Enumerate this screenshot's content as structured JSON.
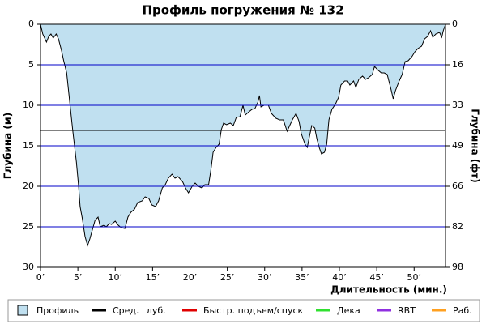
{
  "chart_data": {
    "type": "area",
    "title": "Профиль погружения № 132",
    "x_label": "Длительность (мин.)",
    "y_label": "Глубина (м)",
    "y2_label": "Глубина (фт)",
    "inverted": true,
    "xlim": [
      0,
      54.2
    ],
    "xticks": [
      {
        "value": 0,
        "label": "0’"
      },
      {
        "value": 5,
        "label": "5’"
      },
      {
        "value": 10,
        "label": "10’"
      },
      {
        "value": 15,
        "label": "15’"
      },
      {
        "value": 20,
        "label": "20’"
      },
      {
        "value": 25,
        "label": "25’"
      },
      {
        "value": 30,
        "label": "30’"
      },
      {
        "value": 35,
        "label": "35’"
      },
      {
        "value": 40,
        "label": "40’"
      },
      {
        "value": 45,
        "label": "45’"
      },
      {
        "value": 50,
        "label": "50’"
      }
    ],
    "ylim": [
      0,
      30
    ],
    "yticks": [
      0,
      5,
      10,
      15,
      20,
      25,
      30
    ],
    "y2lim": [
      0,
      98.4
    ],
    "y2ticks": [
      0,
      {
        "value": 16.4,
        "label": "16"
      },
      {
        "value": 32.8,
        "label": "33"
      },
      {
        "value": 49.2,
        "label": "49"
      },
      {
        "value": 65.6,
        "label": "66"
      },
      82,
      {
        "value": 98.4,
        "label": "98"
      }
    ],
    "grid": true,
    "grid_color": "#0000c8",
    "series": [
      {
        "name": "Профиль",
        "color": "#c0e0f0",
        "x": [
          0,
          0.3,
          0.8,
          1.1,
          1.4,
          1.7,
          2.1,
          2.4,
          2.8,
          3.1,
          3.5,
          3.9,
          4.3,
          4.8,
          5.1,
          5.3,
          5.6,
          5.96,
          6.3,
          6.6,
          6.9,
          7.3,
          7.7,
          8.0,
          8.5,
          8.8,
          9.2,
          9.5,
          10,
          10.4,
          10.8,
          11.3,
          11.7,
          12.1,
          12.6,
          13,
          13.6,
          14,
          14.5,
          14.9,
          15.4,
          15.8,
          16.3,
          16.7,
          17.1,
          17.6,
          18,
          18.4,
          19,
          19.4,
          19.8,
          20.3,
          20.7,
          21.1,
          21.6,
          22,
          22.5,
          22.8,
          23.1,
          23.5,
          23.9,
          24.2,
          24.5,
          24.9,
          25.4,
          25.8,
          26.2,
          26.7,
          27.1,
          27.4,
          27.9,
          28.3,
          28.7,
          29.1,
          29.3,
          29.5,
          29.9,
          30.5,
          30.9,
          31.5,
          32,
          32.5,
          33,
          33.3,
          33.7,
          34.2,
          34.6,
          34.9,
          35.4,
          35.7,
          36,
          36.3,
          36.7,
          37,
          37.3,
          37.6,
          38,
          38.3,
          38.6,
          39,
          39.5,
          39.9,
          40.2,
          40.7,
          41.1,
          41.4,
          41.9,
          42.2,
          42.6,
          43.1,
          43.5,
          43.9,
          44.4,
          44.7,
          45.1,
          45.6,
          46,
          46.4,
          46.9,
          47.2,
          47.5,
          48,
          48.4,
          48.8,
          49.2,
          49.7,
          50.1,
          50.5,
          51,
          51.4,
          51.8,
          52.2,
          52.5,
          52.9,
          53.4,
          53.7,
          53.9,
          54.2
        ],
        "values": [
          0,
          1.2,
          2.2,
          1.5,
          1.2,
          1.7,
          1.2,
          1.8,
          3.2,
          4.5,
          6,
          9.5,
          13,
          17,
          20,
          22.5,
          24,
          26.2,
          27.3,
          26.5,
          25.5,
          24.2,
          23.8,
          25,
          24.8,
          25,
          24.6,
          24.7,
          24.3,
          24.8,
          25.1,
          25.2,
          23.8,
          23.2,
          22.8,
          22,
          21.8,
          21.3,
          21.5,
          22.3,
          22.5,
          21.8,
          20.2,
          19.8,
          19,
          18.5,
          19,
          18.8,
          19.4,
          20.2,
          20.8,
          20,
          19.6,
          20,
          20.2,
          19.8,
          19.8,
          18,
          15.8,
          15.2,
          14.8,
          13,
          12.2,
          12.4,
          12.2,
          12.5,
          11.5,
          11.4,
          10,
          11.2,
          10.8,
          10.5,
          10.4,
          9.6,
          8.8,
          10.2,
          10,
          10,
          11,
          11.6,
          11.8,
          11.8,
          13.2,
          12.6,
          11.8,
          11,
          12,
          13.5,
          14.8,
          15.2,
          13.8,
          12.5,
          12.8,
          14.2,
          15.2,
          16,
          15.8,
          14.8,
          11.8,
          10.5,
          9.8,
          9,
          7.5,
          7,
          7,
          7.5,
          7,
          7.8,
          6.8,
          6.4,
          6.8,
          6.6,
          6.2,
          5.2,
          5.6,
          6,
          6,
          6.2,
          8,
          9.2,
          8.2,
          7,
          6.2,
          4.6,
          4.5,
          4,
          3.4,
          3,
          2.7,
          1.8,
          1.5,
          0.8,
          1.6,
          1.2,
          1,
          1.6,
          0.8,
          0
        ]
      },
      {
        "name": "Сред. глуб.",
        "color": "#000000",
        "value": 13.1
      }
    ],
    "legend_extra": [
      {
        "name": "Быстр. подъем/спуск",
        "color": "#e00000"
      },
      {
        "name": "Дека",
        "color": "#30e030"
      },
      {
        "name": "RBT",
        "color": "#9030e0"
      },
      {
        "name": "Раб.",
        "color": "#ffa020"
      }
    ]
  }
}
